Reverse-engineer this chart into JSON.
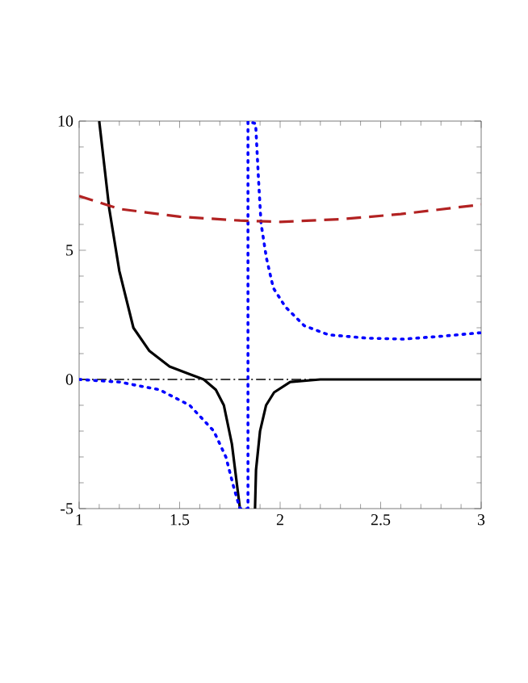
{
  "chart_data": {
    "type": "line",
    "xlim": [
      1,
      3
    ],
    "ylim": [
      -5,
      10
    ],
    "xticks": [
      1,
      1.5,
      2,
      2.5,
      3
    ],
    "yticks": [
      -5,
      0,
      5,
      10
    ],
    "grid": false,
    "marker": "none",
    "ref_lines": [
      {
        "axis": "y",
        "value": 0,
        "color": "#000000",
        "line_style": "dashdot"
      }
    ],
    "series": [
      {
        "color": "#000000",
        "line_style": "solid",
        "x": [
          1.1,
          1.15,
          1.2,
          1.27,
          1.35,
          1.45,
          1.55,
          1.62,
          1.68,
          1.72,
          1.76,
          1.8,
          1.84,
          1.875,
          1.88,
          1.9,
          1.93,
          1.97,
          2.05,
          2.2,
          2.5,
          3
        ],
        "values": [
          10,
          6.6,
          4.2,
          2,
          1.1,
          0.5,
          0.2,
          0,
          -0.4,
          -1,
          -2.5,
          -5,
          null,
          -5,
          -3.5,
          -2,
          -1,
          -0.5,
          -0.1,
          0,
          0,
          0
        ]
      },
      {
        "color": "#0000ff",
        "line_style": "dotted",
        "x": [
          1,
          1.2,
          1.4,
          1.55,
          1.67,
          1.73,
          1.77,
          1.8,
          1.84,
          1.84,
          1.878,
          1.892,
          1.905,
          1.932,
          1.966,
          2.026,
          2.12,
          2.24,
          2.43,
          2.61,
          2.8,
          3
        ],
        "values": [
          0,
          -0.1,
          -0.4,
          -1,
          -2,
          -3,
          -4.2,
          -5,
          -5,
          10,
          9.9,
          7.8,
          6.04,
          4.69,
          3.54,
          2.81,
          2.08,
          1.73,
          1.6,
          1.56,
          1.67,
          1.81
        ]
      },
      {
        "color": "#b22222",
        "line_style": "dashed",
        "x": [
          1,
          1.2,
          1.5,
          1.8,
          2,
          2.3,
          2.6,
          3
        ],
        "values": [
          7.1,
          6.6,
          6.3,
          6.15,
          6.1,
          6.2,
          6.4,
          6.77
        ]
      }
    ]
  }
}
